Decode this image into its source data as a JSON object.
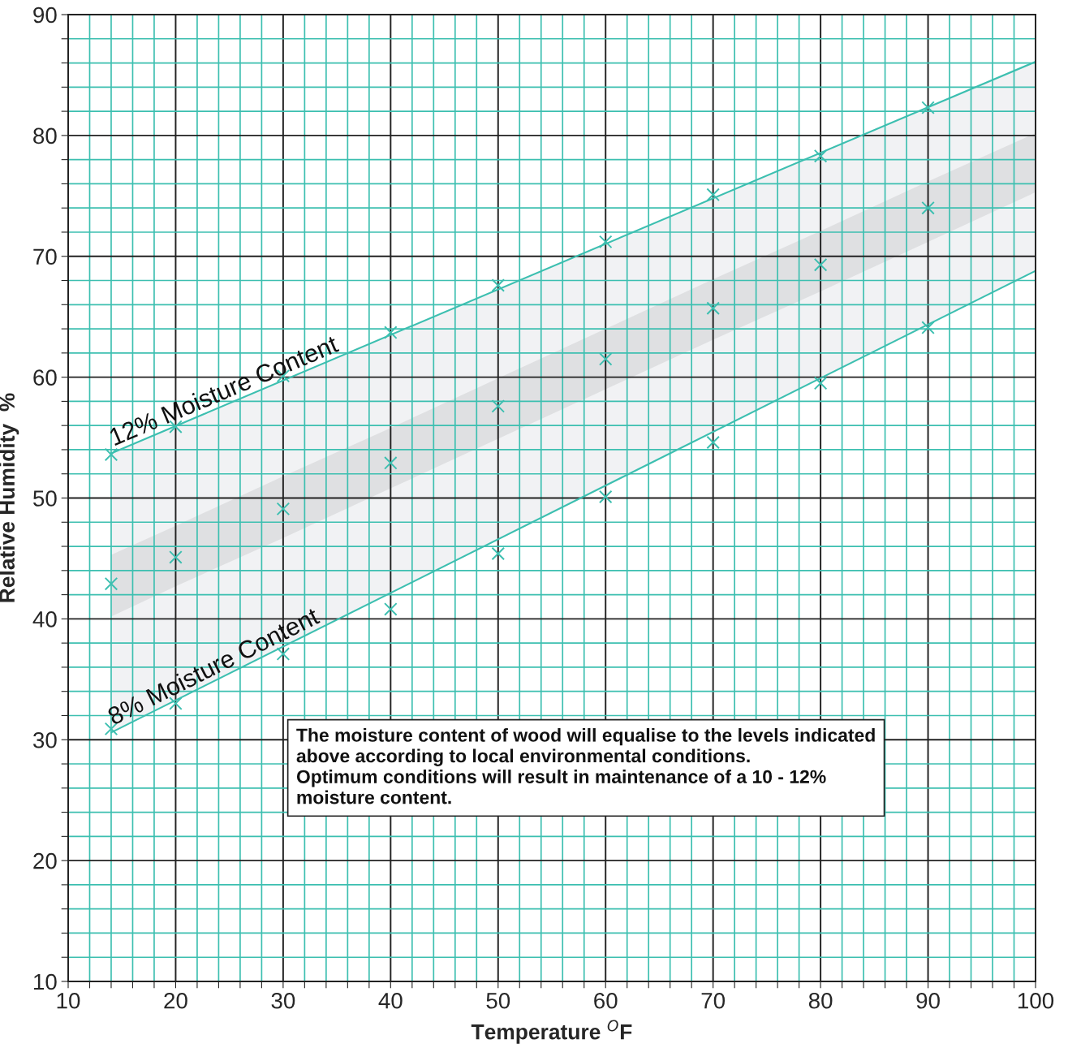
{
  "chart_data": {
    "type": "scatter",
    "xlabel": "Temperature $^{O}$F",
    "ylabel": "Relative Humidity  %",
    "xlim": [
      10,
      100
    ],
    "ylim": [
      10,
      90
    ],
    "xticks": [
      10,
      {
        "value": 12,
        "label": null
      },
      {
        "value": 14,
        "label": null
      },
      {
        "value": 16,
        "label": null
      },
      {
        "value": 18,
        "label": null
      },
      20,
      {
        "value": 22,
        "label": null
      },
      {
        "value": 24,
        "label": null
      },
      {
        "value": 26,
        "label": null
      },
      {
        "value": 28,
        "label": null
      },
      30,
      {
        "value": 32,
        "label": null
      },
      {
        "value": 34,
        "label": null
      },
      {
        "value": 36,
        "label": null
      },
      {
        "value": 38,
        "label": null
      },
      40,
      {
        "value": 42,
        "label": null
      },
      {
        "value": 44,
        "label": null
      },
      {
        "value": 46,
        "label": null
      },
      {
        "value": 48,
        "label": null
      },
      50,
      {
        "value": 52,
        "label": null
      },
      {
        "value": 54,
        "label": null
      },
      {
        "value": 56,
        "label": null
      },
      {
        "value": 58,
        "label": null
      },
      60,
      {
        "value": 62,
        "label": null
      },
      {
        "value": 64,
        "label": null
      },
      {
        "value": 66,
        "label": null
      },
      {
        "value": 68,
        "label": null
      },
      70,
      {
        "value": 72,
        "label": null
      },
      {
        "value": 74,
        "label": null
      },
      {
        "value": 76,
        "label": null
      },
      {
        "value": 78,
        "label": null
      },
      80,
      {
        "value": 82,
        "label": null
      },
      {
        "value": 84,
        "label": null
      },
      {
        "value": 86,
        "label": null
      },
      {
        "value": 88,
        "label": null
      },
      90,
      {
        "value": 92,
        "label": null
      },
      {
        "value": 94,
        "label": null
      },
      {
        "value": 96,
        "label": null
      },
      {
        "value": 98,
        "label": null
      },
      100
    ],
    "yticks": [
      10,
      {
        "value": 12,
        "label": null
      },
      {
        "value": 14,
        "label": null
      },
      {
        "value": 16,
        "label": null
      },
      {
        "value": 18,
        "label": null
      },
      20,
      {
        "value": 22,
        "label": null
      },
      {
        "value": 24,
        "label": null
      },
      {
        "value": 26,
        "label": null
      },
      {
        "value": 28,
        "label": null
      },
      30,
      {
        "value": 32,
        "label": null
      },
      {
        "value": 34,
        "label": null
      },
      {
        "value": 36,
        "label": null
      },
      {
        "value": 38,
        "label": null
      },
      40,
      {
        "value": 42,
        "label": null
      },
      {
        "value": 44,
        "label": null
      },
      {
        "value": 46,
        "label": null
      },
      {
        "value": 48,
        "label": null
      },
      50,
      {
        "value": 52,
        "label": null
      },
      {
        "value": 54,
        "label": null
      },
      {
        "value": 56,
        "label": null
      },
      {
        "value": 58,
        "label": null
      },
      60,
      {
        "value": 62,
        "label": null
      },
      {
        "value": 64,
        "label": null
      },
      {
        "value": 66,
        "label": null
      },
      {
        "value": 68,
        "label": null
      },
      70,
      {
        "value": 72,
        "label": null
      },
      {
        "value": 74,
        "label": null
      },
      {
        "value": 76,
        "label": null
      },
      {
        "value": 78,
        "label": null
      },
      80,
      {
        "value": 82,
        "label": null
      },
      {
        "value": 84,
        "label": null
      },
      {
        "value": 86,
        "label": null
      },
      {
        "value": 88,
        "label": null
      },
      90
    ],
    "grid": true,
    "series": [
      {
        "type": "line",
        "color": "#3cbfb0",
        "marker": "none",
        "line_style": "solid",
        "x": [
          14,
          100
        ],
        "values": [
          53.7,
          86.1
        ],
        "lower": [
          30.6,
          68.8
        ],
        "upper": [
          53.7,
          86.1
        ]
      },
      {
        "type": "line",
        "color": "#3cbfb0",
        "marker": "none",
        "line_style": "solid",
        "x": [
          14,
          100
        ],
        "values": [
          30.6,
          68.8
        ]
      },
      {
        "color": "#3cbfb0",
        "marker": "cross",
        "x": [
          14,
          20,
          30,
          40,
          50,
          60,
          70,
          80,
          90
        ],
        "values": [
          53.6,
          55.9,
          60.1,
          63.7,
          67.6,
          71.2,
          75.1,
          78.3,
          82.3
        ]
      },
      {
        "color": "#3cbfb0",
        "marker": "cross",
        "x": [
          14,
          20,
          30,
          40,
          50,
          60,
          70,
          80,
          90,
          100
        ],
        "values": [
          42.9,
          45.1,
          49.1,
          52.9,
          57.6,
          61.5,
          65.7,
          69.3,
          74.0,
          null
        ],
        "lower": [
          40.2,
          42.7,
          46.7,
          50.8,
          54.9,
          59.0,
          63.1,
          67.1,
          71.2,
          75.3
        ],
        "upper": [
          45.3,
          47.7,
          51.8,
          55.8,
          59.9,
          64.0,
          68.1,
          72.1,
          76.2,
          80.2
        ]
      },
      {
        "color": "#3cbfb0",
        "marker": "cross",
        "x": [
          14,
          20,
          30,
          40,
          50,
          60,
          70,
          80,
          90
        ],
        "values": [
          30.9,
          33.0,
          37.1,
          40.8,
          45.4,
          50.1,
          54.6,
          59.5,
          64.1
        ]
      }
    ],
    "annotations": [
      {
        "text": "12% Moisture Content",
        "x": 14,
        "y": 53.7
      },
      {
        "text": "8% Moisture Content",
        "x": 14,
        "y": 30.6
      },
      "The moisture content of wood will equalise to the levels indicated\nabove according to local environmental conditions.\nOptimum conditions will result in maintenance of a 10 - 12%\nmoisture content."
    ]
  }
}
